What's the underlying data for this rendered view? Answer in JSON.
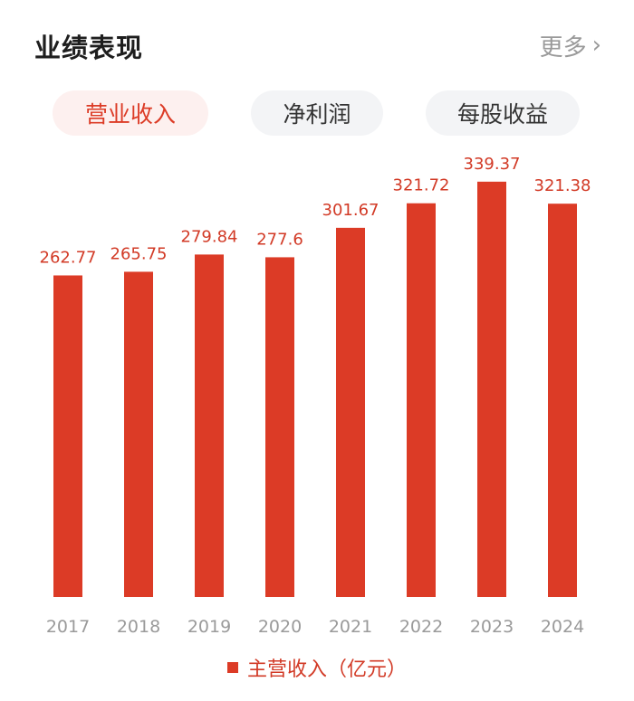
{
  "header": {
    "title": "业绩表现",
    "more_label": "更多",
    "more_icon": "chevron-right-icon"
  },
  "tabs": [
    {
      "label": "营业收入",
      "active": true
    },
    {
      "label": "净利润",
      "active": false
    },
    {
      "label": "每股收益",
      "active": false
    }
  ],
  "colors": {
    "bar": "#dc3b26",
    "data_label": "#d23a26",
    "axis_label": "#9a9a9a",
    "active_tab_bg": "#fdf0ef",
    "inactive_tab_bg": "#f3f4f6"
  },
  "chart_data": {
    "type": "bar",
    "categories": [
      "2017",
      "2018",
      "2019",
      "2020",
      "2021",
      "2022",
      "2023",
      "2024"
    ],
    "series": [
      {
        "name": "主营收入（亿元）",
        "values": [
          262.77,
          265.75,
          279.84,
          277.6,
          301.67,
          321.72,
          339.37,
          321.38
        ]
      }
    ],
    "data_labels": [
      "262.77",
      "265.75",
      "279.84",
      "277.6",
      "301.67",
      "321.72",
      "339.37",
      "321.38"
    ],
    "ylim": [
      0,
      340
    ],
    "grid": false,
    "legend_position": "bottom-center"
  },
  "legend": {
    "label": "主营收入（亿元）"
  }
}
